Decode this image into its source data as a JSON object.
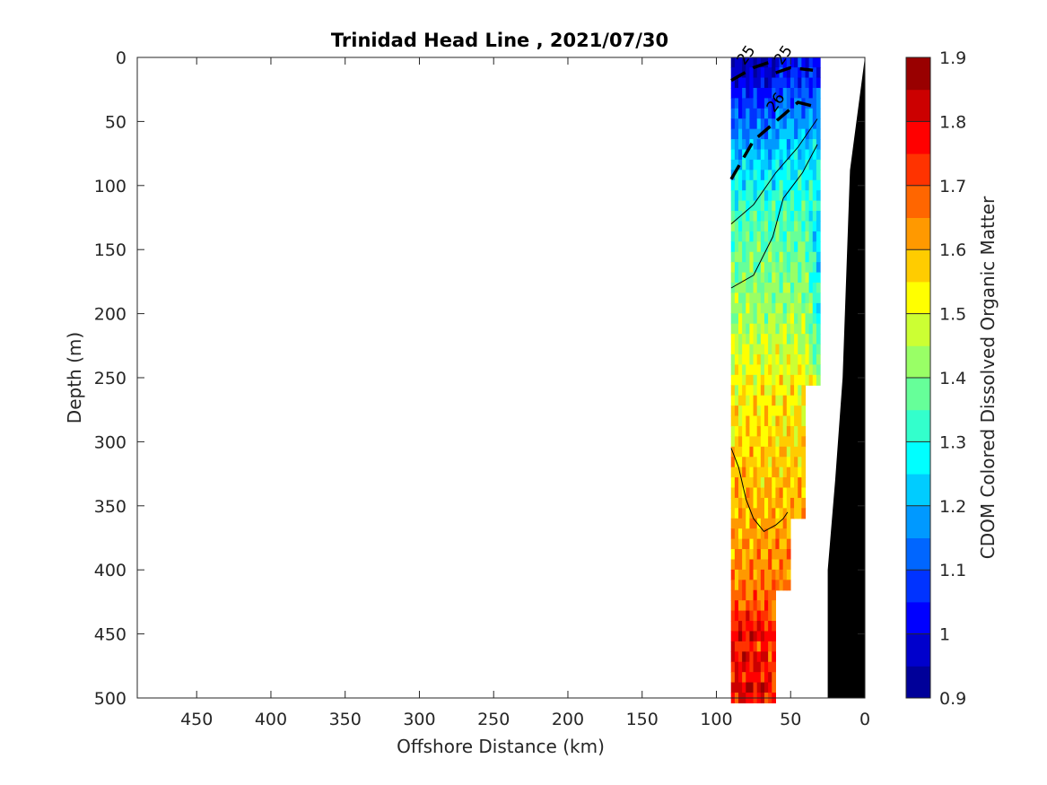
{
  "chart_data": {
    "type": "heatmap",
    "title": "Trinidad Head Line , 2021/07/30",
    "xlabel": "Offshore Distance (km)",
    "ylabel": "Depth (m)",
    "xlim": [
      490,
      0
    ],
    "ylim": [
      0,
      500
    ],
    "x_reversed": true,
    "y_reversed": true,
    "x_ticks": [
      "450",
      "400",
      "350",
      "300",
      "250",
      "200",
      "150",
      "100",
      "50",
      "0"
    ],
    "x_tick_values": [
      450,
      400,
      350,
      300,
      250,
      200,
      150,
      100,
      50,
      0
    ],
    "y_ticks": [
      "0",
      "50",
      "100",
      "150",
      "200",
      "250",
      "300",
      "350",
      "400",
      "450",
      "500"
    ],
    "y_tick_values": [
      0,
      50,
      100,
      150,
      200,
      250,
      300,
      350,
      400,
      450,
      500
    ],
    "colorbar": {
      "label": "CDOM Colored Dissolved Organic Matter",
      "range": [
        0.9,
        1.9
      ],
      "step": 0.05,
      "ticks": [
        "0.9",
        "1",
        "1.1",
        "1.2",
        "1.3",
        "1.4",
        "1.5",
        "1.6",
        "1.7",
        "1.8",
        "1.9"
      ],
      "tick_values": [
        0.9,
        1.0,
        1.1,
        1.2,
        1.3,
        1.4,
        1.5,
        1.6,
        1.7,
        1.8,
        1.9
      ],
      "colormap": "jet"
    },
    "data_extent": {
      "x": [
        90,
        30
      ],
      "depth": [
        0,
        500
      ]
    },
    "section_columns": [
      {
        "x_range": [
          90,
          60
        ],
        "depth_max": 500
      },
      {
        "x_range": [
          60,
          50
        ],
        "depth_max": 410
      },
      {
        "x_range": [
          50,
          40
        ],
        "depth_max": 360
      },
      {
        "x_range": [
          40,
          30
        ],
        "depth_max": 250
      }
    ],
    "cdom_profile": [
      {
        "depth": 0,
        "value": 1.05
      },
      {
        "depth": 20,
        "value": 1.1
      },
      {
        "depth": 50,
        "value": 1.2
      },
      {
        "depth": 100,
        "value": 1.3
      },
      {
        "depth": 150,
        "value": 1.38
      },
      {
        "depth": 200,
        "value": 1.43
      },
      {
        "depth": 250,
        "value": 1.52
      },
      {
        "depth": 300,
        "value": 1.56
      },
      {
        "depth": 350,
        "value": 1.6
      },
      {
        "depth": 400,
        "value": 1.64
      },
      {
        "depth": 450,
        "value": 1.72
      },
      {
        "depth": 500,
        "value": 1.74
      }
    ],
    "contours": [
      {
        "label": "25",
        "bold": true,
        "points": [
          [
            90,
            18
          ],
          [
            75,
            8
          ],
          [
            60,
            2
          ]
        ]
      },
      {
        "label": "25",
        "bold": true,
        "points": [
          [
            60,
            12
          ],
          [
            50,
            8
          ],
          [
            35,
            10
          ]
        ]
      },
      {
        "label": "26",
        "bold": true,
        "points": [
          [
            90,
            95
          ],
          [
            75,
            65
          ],
          [
            55,
            45
          ],
          [
            45,
            35
          ],
          [
            35,
            38
          ]
        ]
      },
      {
        "label": "",
        "bold": false,
        "points": [
          [
            90,
            130
          ],
          [
            75,
            115
          ],
          [
            60,
            90
          ],
          [
            45,
            70
          ],
          [
            32,
            48
          ]
        ]
      },
      {
        "label": "",
        "bold": false,
        "points": [
          [
            90,
            180
          ],
          [
            75,
            170
          ],
          [
            62,
            140
          ],
          [
            55,
            110
          ],
          [
            42,
            90
          ],
          [
            32,
            68
          ]
        ]
      },
      {
        "label": "",
        "bold": false,
        "points": [
          [
            90,
            305
          ],
          [
            85,
            320
          ],
          [
            80,
            345
          ],
          [
            75,
            360
          ],
          [
            68,
            370
          ],
          [
            60,
            365
          ],
          [
            55,
            360
          ],
          [
            52,
            355
          ]
        ]
      }
    ],
    "bathymetry": [
      [
        0,
        0
      ],
      [
        10,
        88
      ],
      [
        15,
        250
      ],
      [
        20,
        330
      ],
      [
        25,
        400
      ],
      [
        25,
        500
      ],
      [
        0,
        500
      ]
    ],
    "grid": false
  }
}
